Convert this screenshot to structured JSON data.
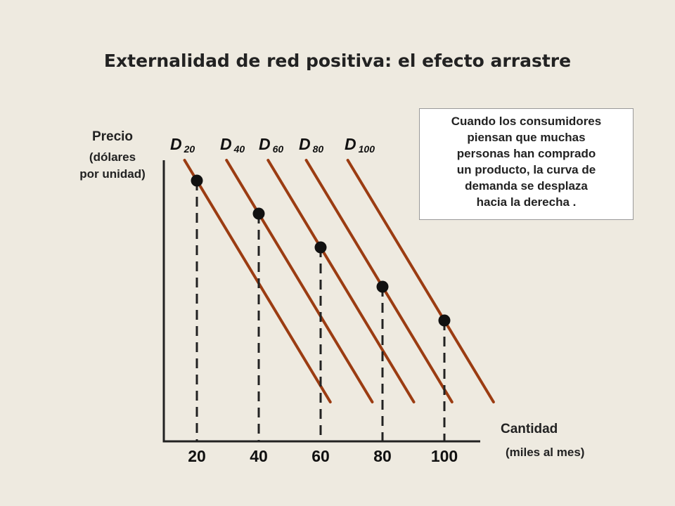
{
  "chart_data": {
    "type": "line",
    "title": "Externalidad de red positiva: el efecto arrastre",
    "ylabel": "Precio",
    "ylabel_sub": [
      "(dólares",
      "por unidad)"
    ],
    "xlabel": "Cantidad",
    "xlabel_sub": "(miles al mes)",
    "x_ticks": [
      20,
      40,
      60,
      80,
      100
    ],
    "grid": false,
    "series": [
      {
        "name": "D",
        "subscript": "20"
      },
      {
        "name": "D",
        "subscript": "40"
      },
      {
        "name": "D",
        "subscript": "60"
      },
      {
        "name": "D",
        "subscript": "80"
      },
      {
        "name": "D",
        "subscript": "100"
      }
    ],
    "points": [
      {
        "x": 20,
        "curve": "20"
      },
      {
        "x": 40,
        "curve": "40"
      },
      {
        "x": 60,
        "curve": "60"
      },
      {
        "x": 80,
        "curve": "80"
      },
      {
        "x": 100,
        "curve": "100"
      }
    ],
    "annotation": [
      "Cuando los consumidores",
      "piensan que muchas",
      "personas han comprado",
      "un producto, la curva de",
      "demanda se desplaza",
      "hacia la derecha ."
    ],
    "colors": {
      "curve": "#9b3c12",
      "axis": "#222222",
      "point": "#111111",
      "background": "#eeeae0"
    }
  }
}
